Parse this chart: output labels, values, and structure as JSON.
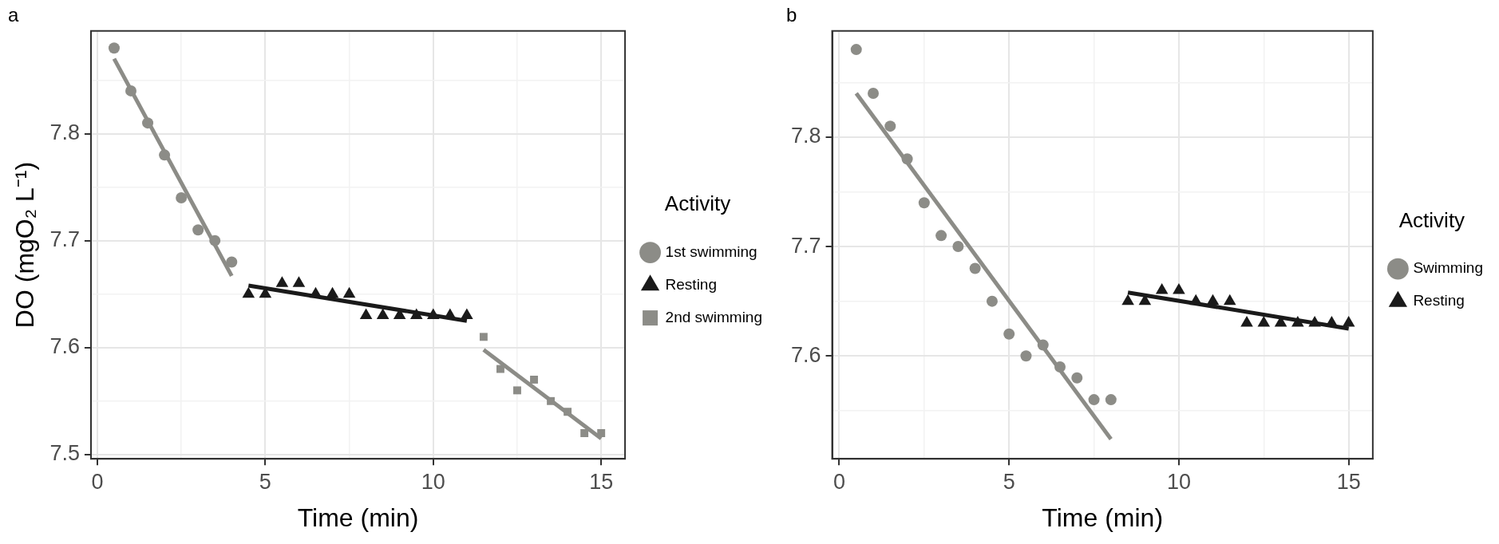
{
  "chart_data": [
    {
      "type": "scatter",
      "title": "a",
      "xlabel": "Time (min)",
      "ylabel": "DO (mgO₂ L⁻¹)",
      "legend_title": "Activity",
      "legend": "right",
      "grid": true,
      "xlim": [
        -0.19,
        15.71
      ],
      "xticks": [
        0,
        5,
        10,
        15,
        {
          "value": 2.5,
          "label": null
        },
        {
          "value": 7.5,
          "label": null
        },
        {
          "value": 12.5,
          "label": null
        }
      ],
      "ylim": [
        7.496,
        7.896
      ],
      "yticks": [
        7.5,
        7.6,
        7.7,
        7.8,
        {
          "value": 7.55,
          "label": null
        },
        {
          "value": 7.65,
          "label": null
        },
        {
          "value": 7.75,
          "label": null
        },
        {
          "value": 7.85,
          "label": null
        }
      ],
      "series": [
        {
          "name": "1st swimming",
          "color": "#8c8c87",
          "marker": "circle",
          "x": [
            0.5,
            1,
            1.5,
            2,
            2.5,
            3,
            3.5,
            4
          ],
          "values": [
            7.88,
            7.84,
            7.81,
            7.78,
            7.74,
            7.71,
            7.7,
            7.68
          ]
        },
        {
          "name": "Resting",
          "color": "#1a1a1a",
          "marker": "triangle",
          "x": [
            4.5,
            5,
            5.5,
            6,
            6.5,
            7,
            7.5,
            8,
            8.5,
            9,
            9.5,
            10,
            10.5,
            11
          ],
          "values": [
            7.65,
            7.65,
            7.66,
            7.66,
            7.65,
            7.65,
            7.65,
            7.63,
            7.63,
            7.63,
            7.63,
            7.63,
            7.63,
            7.63
          ]
        },
        {
          "name": "2nd swimming",
          "color": "#8c8c87",
          "marker": "square",
          "x": [
            11.5,
            12,
            12.5,
            13,
            13.5,
            14,
            14.5,
            15
          ],
          "values": [
            7.61,
            7.58,
            7.56,
            7.57,
            7.55,
            7.54,
            7.52,
            7.52
          ]
        },
        {
          "type": "line",
          "color": "#8c8c87",
          "marker": "none",
          "x": [
            0.5,
            4
          ],
          "values": [
            7.87,
            7.667
          ]
        },
        {
          "type": "line",
          "color": "#1a1a1a",
          "marker": "none",
          "x": [
            4.5,
            11
          ],
          "values": [
            7.658,
            7.625
          ]
        },
        {
          "type": "line",
          "color": "#8c8c87",
          "marker": "none",
          "x": [
            11.5,
            15
          ],
          "values": [
            7.598,
            7.515
          ]
        }
      ]
    },
    {
      "type": "scatter",
      "title": "b",
      "xlabel": "Time (min)",
      "legend_title": "Activity",
      "legend": "right",
      "grid": true,
      "xlim": [
        -0.21,
        15.71
      ],
      "xticks": [
        0,
        5,
        10,
        15,
        {
          "value": 2.5,
          "label": null
        },
        {
          "value": 7.5,
          "label": null
        },
        {
          "value": 12.5,
          "label": null
        }
      ],
      "ylim": [
        7.506,
        7.897
      ],
      "yticks": [
        7.6,
        7.7,
        7.8,
        {
          "value": 7.55,
          "label": null
        },
        {
          "value": 7.65,
          "label": null
        },
        {
          "value": 7.75,
          "label": null
        },
        {
          "value": 7.85,
          "label": null
        }
      ],
      "series": [
        {
          "name": "Swimming",
          "color": "#8c8c87",
          "marker": "circle",
          "x": [
            0.5,
            1,
            1.5,
            2,
            2.5,
            3,
            3.5,
            4,
            4.5,
            5,
            5.5,
            6,
            6.5,
            7,
            7.5,
            8
          ],
          "values": [
            7.88,
            7.84,
            7.81,
            7.78,
            7.74,
            7.71,
            7.7,
            7.68,
            7.65,
            7.62,
            7.6,
            7.61,
            7.59,
            7.58,
            7.56,
            7.56
          ]
        },
        {
          "name": "Resting",
          "color": "#1a1a1a",
          "marker": "triangle",
          "x": [
            8.5,
            9,
            9.5,
            10,
            10.5,
            11,
            11.5,
            12,
            12.5,
            13,
            13.5,
            14,
            14.5,
            15
          ],
          "values": [
            7.65,
            7.65,
            7.66,
            7.66,
            7.65,
            7.65,
            7.65,
            7.63,
            7.63,
            7.63,
            7.63,
            7.63,
            7.63,
            7.63
          ]
        },
        {
          "type": "line",
          "color": "#8c8c87",
          "marker": "none",
          "x": [
            0.5,
            8
          ],
          "values": [
            7.84,
            7.524
          ]
        },
        {
          "type": "line",
          "color": "#1a1a1a",
          "marker": "none",
          "x": [
            8.5,
            15
          ],
          "values": [
            7.658,
            7.625
          ]
        }
      ]
    }
  ]
}
